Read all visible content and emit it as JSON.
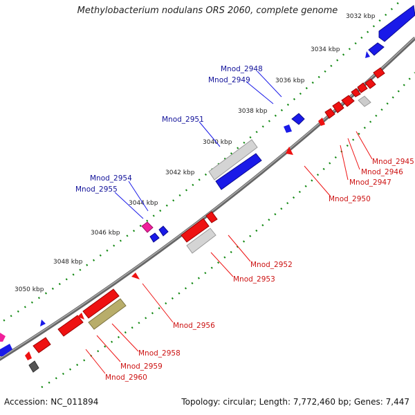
{
  "title": "Methylobacterium nodulans ORS 2060, complete genome",
  "footer": {
    "accession_label": "Accession:",
    "accession": "NC_011894",
    "summary": "Topology: circular; Length: 7,772,460 bp; Genes: 7,447"
  },
  "ticks": [
    "3032 kbp",
    "3034 kbp",
    "3036 kbp",
    "3038 kbp",
    "3040 kbp",
    "3042 kbp",
    "3044 kbp",
    "3046 kbp",
    "3048 kbp",
    "3050 kbp"
  ],
  "genes_forward": [
    "Mnod_2948",
    "Mnod_2949",
    "Mnod_2951",
    "Mnod_2954",
    "Mnod_2955"
  ],
  "genes_reverse": [
    "Mnod_2945",
    "Mnod_2946",
    "Mnod_2947",
    "Mnod_2950",
    "Mnod_2952",
    "Mnod_2953",
    "Mnod_2956",
    "Mnod_2958",
    "Mnod_2959",
    "Mnod_2960"
  ],
  "colors": {
    "forward": "#1010e0",
    "reverse": "#ee1111",
    "grey": "#c8c8c8",
    "pink": "#f0209a",
    "olive": "#b8ad6a",
    "backbone": "#777777",
    "tick": "#118811",
    "label_forward": "#111199",
    "label_reverse": "#cc1111"
  }
}
